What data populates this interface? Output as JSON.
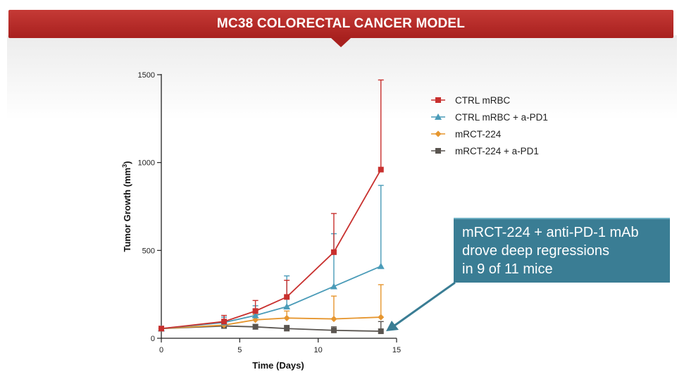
{
  "banner": {
    "title": "MC38 COLORECTAL CANCER MODEL"
  },
  "callout": {
    "lines": [
      "mRCT-224 + anti-PD-1 mAb",
      "drove deep regressions",
      "in 9 of 11 mice"
    ]
  },
  "colors": {
    "banner": "#b32b28",
    "callout": "#3a7d94",
    "ctrl": "#c8302e",
    "ctrl_pd1": "#4a9bb8",
    "mrct": "#e6962f",
    "mrct_pd1": "#5a5550"
  },
  "chart_data": {
    "type": "line",
    "xlabel": "Time (Days)",
    "ylabel": "Tumor  Growth (mm",
    "ylabel_sup": "3",
    "ylabel_end": ")",
    "xlim": [
      0,
      15
    ],
    "ylim": [
      0,
      1500
    ],
    "xticks": [
      0,
      5,
      10,
      15
    ],
    "yticks": [
      0,
      500,
      1000,
      1500
    ],
    "x": [
      0,
      4,
      6,
      8,
      11,
      14
    ],
    "series": [
      {
        "name": "CTRL mRBC",
        "marker": "square",
        "color": "#c8302e",
        "values": [
          55,
          95,
          155,
          235,
          490,
          960
        ],
        "errors": [
          10,
          35,
          60,
          95,
          220,
          510
        ]
      },
      {
        "name": "CTRL mRBC + a-PD1",
        "marker": "triangle",
        "color": "#4a9bb8",
        "values": [
          55,
          90,
          130,
          180,
          295,
          410
        ],
        "errors": [
          10,
          30,
          55,
          175,
          300,
          460
        ]
      },
      {
        "name": "mRCT-224",
        "marker": "diamond",
        "color": "#e6962f",
        "values": [
          55,
          75,
          105,
          115,
          110,
          120
        ],
        "errors": [
          8,
          20,
          30,
          40,
          130,
          185
        ]
      },
      {
        "name": "mRCT-224 + a-PD1",
        "marker": "square",
        "color": "#5a5550",
        "values": [
          55,
          70,
          65,
          55,
          45,
          40
        ],
        "errors": [
          6,
          12,
          14,
          18,
          20,
          55
        ]
      }
    ]
  }
}
